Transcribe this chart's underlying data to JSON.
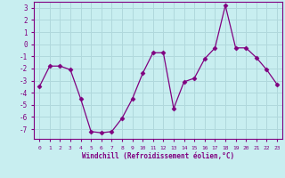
{
  "x": [
    0,
    1,
    2,
    3,
    4,
    5,
    6,
    7,
    8,
    9,
    10,
    11,
    12,
    13,
    14,
    15,
    16,
    17,
    18,
    19,
    20,
    21,
    22,
    23
  ],
  "y": [
    -3.5,
    -1.8,
    -1.8,
    -2.1,
    -4.5,
    -7.2,
    -7.3,
    -7.2,
    -6.1,
    -4.5,
    -2.4,
    -0.7,
    -0.7,
    -5.3,
    -3.1,
    -2.8,
    -1.2,
    -0.3,
    3.2,
    -0.3,
    -0.3,
    -1.1,
    -2.1,
    -3.3
  ],
  "line_color": "#800080",
  "marker": "D",
  "marker_size": 2.5,
  "bg_color": "#c8eef0",
  "grid_color": "#b0d8dc",
  "xlabel": "Windchill (Refroidissement éolien,°C)",
  "ylim": [
    -7.8,
    3.5
  ],
  "xlim": [
    -0.5,
    23.5
  ],
  "yticks": [
    -7,
    -6,
    -5,
    -4,
    -3,
    -2,
    -1,
    0,
    1,
    2,
    3
  ],
  "xticks": [
    0,
    1,
    2,
    3,
    4,
    5,
    6,
    7,
    8,
    9,
    10,
    11,
    12,
    13,
    14,
    15,
    16,
    17,
    18,
    19,
    20,
    21,
    22,
    23
  ],
  "axis_color": "#800080",
  "tick_color": "#800080",
  "label_color": "#800080"
}
